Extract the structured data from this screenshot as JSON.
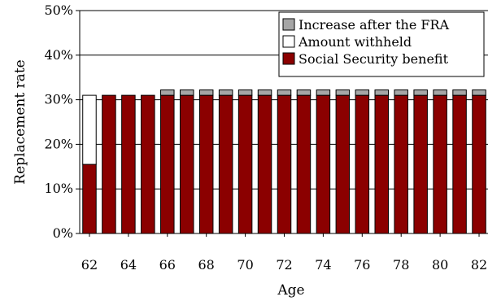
{
  "chart_data": {
    "type": "bar",
    "stacked": true,
    "xlabel": "Age",
    "ylabel": "Replacement rate",
    "ylim": [
      0,
      50
    ],
    "yticks": [
      "0%",
      "10%",
      "20%",
      "30%",
      "40%",
      "50%"
    ],
    "categories": [
      "62",
      "63",
      "64",
      "65",
      "66",
      "67",
      "68",
      "69",
      "70",
      "71",
      "72",
      "73",
      "74",
      "75",
      "76",
      "77",
      "78",
      "79",
      "80",
      "81",
      "82"
    ],
    "xtick_labels": [
      "62",
      "64",
      "66",
      "68",
      "70",
      "72",
      "74",
      "76",
      "78",
      "80",
      "82"
    ],
    "grid": "horizontal",
    "legend_position": "top-right",
    "series": [
      {
        "name": "Social Security benefit",
        "color": "#8b0000",
        "values": [
          15.5,
          31,
          31,
          31,
          31,
          31,
          31,
          31,
          31,
          31,
          31,
          31,
          31,
          31,
          31,
          31,
          31,
          31,
          31,
          31,
          31
        ]
      },
      {
        "name": "Amount withheld",
        "color": "#ffffff",
        "values": [
          15.5,
          0,
          0,
          0,
          0,
          0,
          0,
          0,
          0,
          0,
          0,
          0,
          0,
          0,
          0,
          0,
          0,
          0,
          0,
          0,
          0
        ]
      },
      {
        "name": "Increase after the FRA",
        "color": "#a6a6a6",
        "values": [
          0,
          0,
          0,
          0,
          1.2,
          1.2,
          1.2,
          1.2,
          1.2,
          1.2,
          1.2,
          1.2,
          1.2,
          1.2,
          1.2,
          1.2,
          1.2,
          1.2,
          1.2,
          1.2,
          1.2
        ]
      }
    ],
    "legend_order": [
      "Increase after the FRA",
      "Amount withheld",
      "Social Security benefit"
    ]
  }
}
